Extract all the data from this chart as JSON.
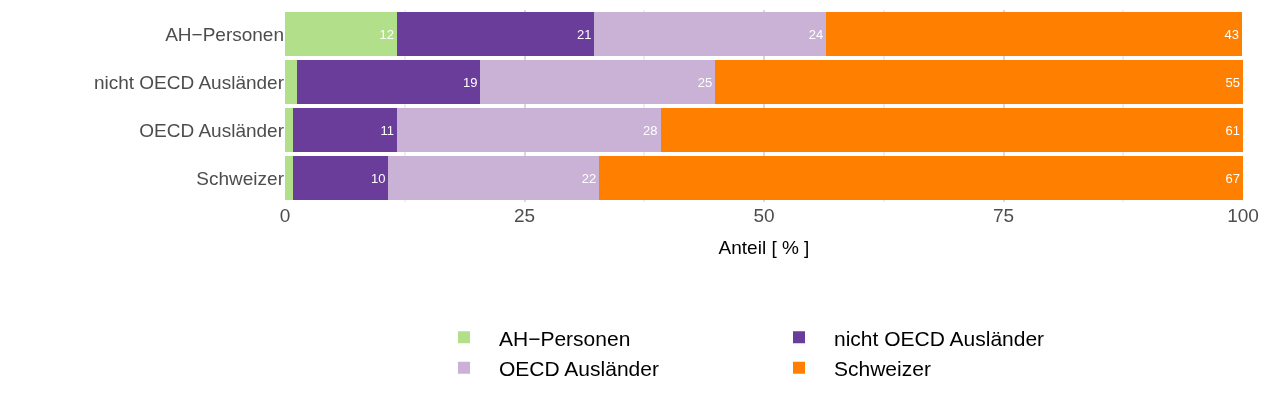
{
  "chart_data": {
    "type": "bar",
    "orientation": "horizontal",
    "stacked": true,
    "xlabel": "Anteil [ % ]",
    "categories": [
      "AH−Personen",
      "nicht OECD Ausländer",
      "OECD Ausländer",
      "Schweizer"
    ],
    "series": [
      {
        "name": "AH−Personen",
        "color": "#b2df8a",
        "values": [
          11.7,
          1.3,
          0.8,
          0.8
        ],
        "value_labels": [
          "12",
          null,
          null,
          null
        ]
      },
      {
        "name": "nicht OECD Ausländer",
        "color": "#6a3d9a",
        "values": [
          20.6,
          19.1,
          10.9,
          10.0
        ],
        "value_labels": [
          "21",
          "19",
          "11",
          "10"
        ]
      },
      {
        "name": "OECD Ausländer",
        "color": "#cab2d6",
        "values": [
          24.2,
          24.5,
          27.5,
          22.0
        ],
        "value_labels": [
          "24",
          "25",
          "28",
          "22"
        ]
      },
      {
        "name": "Schweizer",
        "color": "#ff7f00",
        "values": [
          43.4,
          55.1,
          60.8,
          67.2
        ],
        "value_labels": [
          "43",
          "55",
          "61",
          "67"
        ]
      }
    ],
    "xlim": [
      0,
      100
    ],
    "xticks": [
      0,
      25,
      50,
      75,
      100
    ],
    "grid": "x",
    "legend": "bottom"
  }
}
